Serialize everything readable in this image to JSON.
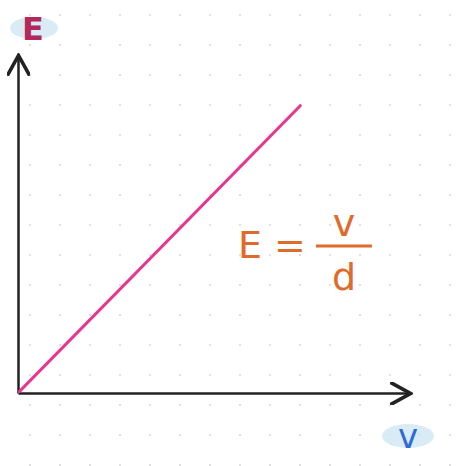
{
  "chart_data": {
    "type": "line",
    "x_label": "v",
    "y_label": "E",
    "annotation": {
      "left": "E =",
      "numerator": "v",
      "denominator": "d"
    },
    "x": [
      0,
      7.2
    ],
    "series": [
      {
        "values": [
          0,
          8.5
        ],
        "color": "#e8368f"
      }
    ],
    "xlim": [
      0,
      10
    ],
    "ylim": [
      0,
      10
    ],
    "tick_labels": false
  }
}
